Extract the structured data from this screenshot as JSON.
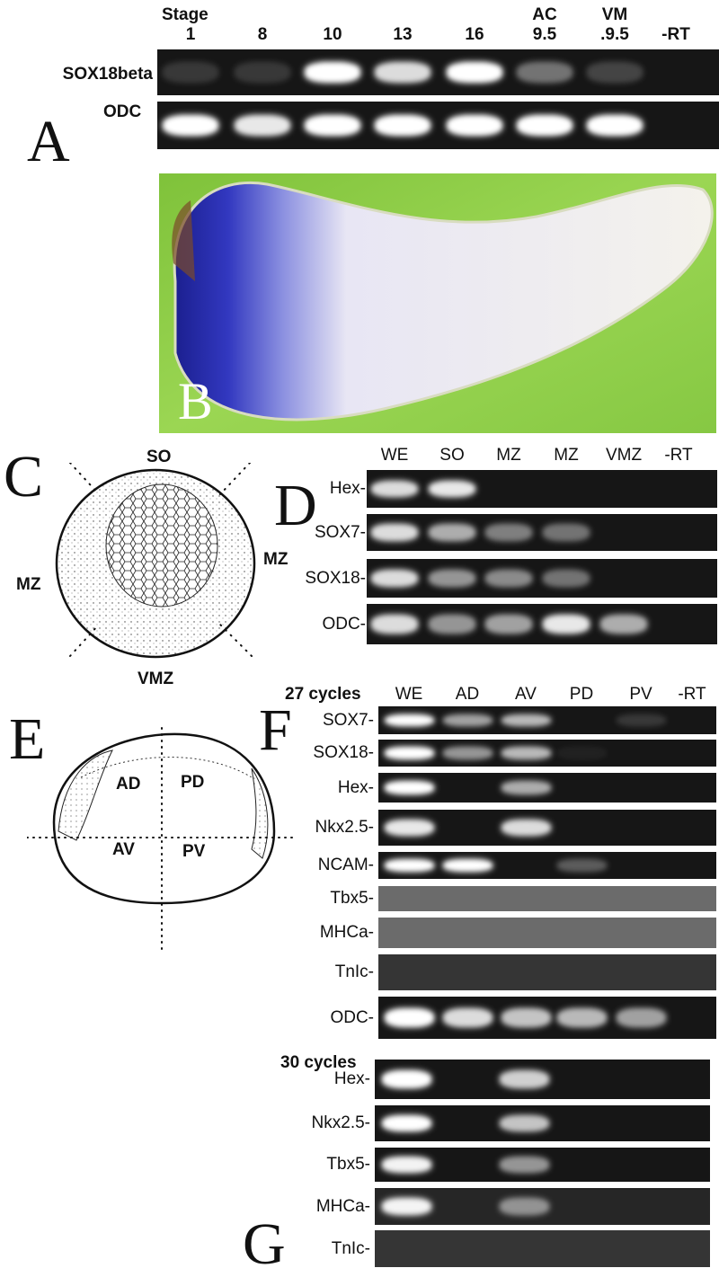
{
  "panel_a": {
    "letter": "A",
    "stage_label": "Stage",
    "lanes_top": [
      "",
      "",
      "",
      "",
      "",
      "AC",
      "VM",
      ""
    ],
    "lanes": [
      "1",
      "8",
      "10",
      "13",
      "16",
      "9.5",
      ".9.5",
      "-RT"
    ],
    "rows": [
      {
        "label": "SOX18beta",
        "bands": [
          0.15,
          0.15,
          1.0,
          0.85,
          1.0,
          0.4,
          0.2,
          0
        ]
      },
      {
        "label": "ODC",
        "bands": [
          1.0,
          0.9,
          1.0,
          1.0,
          1.0,
          1.0,
          1.0,
          0
        ]
      }
    ]
  },
  "panel_b": {
    "letter": "B"
  },
  "panel_c": {
    "letter": "C",
    "labels": {
      "top": "SO",
      "left": "MZ",
      "right": "MZ",
      "bottom": "VMZ"
    }
  },
  "panel_d": {
    "letter": "D",
    "lanes": [
      "WE",
      "SO",
      "MZ",
      "MZ",
      "VMZ",
      "-RT"
    ],
    "rows": [
      {
        "label": "Hex-",
        "bands": [
          0.85,
          0.9,
          0,
          0,
          0,
          0
        ]
      },
      {
        "label": "SOX7-",
        "bands": [
          0.85,
          0.65,
          0.45,
          0.4,
          0,
          0
        ]
      },
      {
        "label": "SOX18-",
        "bands": [
          0.85,
          0.55,
          0.5,
          0.4,
          0,
          0
        ]
      },
      {
        "label": "ODC-",
        "bands": [
          0.85,
          0.55,
          0.6,
          0.9,
          0.65,
          0
        ]
      }
    ]
  },
  "panel_e": {
    "letter": "E",
    "labels": {
      "ad": "AD",
      "pd": "PD",
      "av": "AV",
      "pv": "PV"
    }
  },
  "panel_f": {
    "letter": "F",
    "cycles": "27 cycles",
    "lanes": [
      "WE",
      "AD",
      "AV",
      "PD",
      "PV",
      "-RT"
    ],
    "rows": [
      {
        "label": "SOX7-",
        "bands": [
          1.0,
          0.6,
          0.7,
          0,
          0.15,
          0
        ],
        "background": "dark"
      },
      {
        "label": "SOX18-",
        "bands": [
          1.0,
          0.55,
          0.7,
          0.05,
          0,
          0
        ],
        "background": "dark"
      },
      {
        "label": "Hex-",
        "bands": [
          1.0,
          0,
          0.65,
          0,
          0,
          0
        ],
        "background": "dark"
      },
      {
        "label": "Nkx2.5-",
        "bands": [
          0.9,
          0,
          0.85,
          0,
          0,
          0
        ],
        "background": "dark"
      },
      {
        "label": "NCAM-",
        "bands": [
          1.0,
          1.0,
          0,
          0.3,
          0,
          0
        ],
        "background": "dark"
      },
      {
        "label": "Tbx5-",
        "bands": [
          0,
          0,
          0,
          0,
          0,
          0
        ],
        "background": "gray"
      },
      {
        "label": "MHCa-",
        "bands": [
          0,
          0,
          0,
          0,
          0,
          0
        ],
        "background": "gray"
      },
      {
        "label": "TnIc-",
        "bands": [
          0,
          0,
          0,
          0,
          0,
          0
        ],
        "background": "mid"
      },
      {
        "label": "ODC-",
        "bands": [
          1.0,
          0.85,
          0.75,
          0.7,
          0.6,
          0
        ],
        "background": "dark"
      }
    ]
  },
  "panel_g": {
    "letter": "G",
    "cycles": "30 cycles",
    "rows": [
      {
        "label": "Hex-",
        "bands": [
          1.0,
          0,
          0.8,
          0,
          0,
          0
        ],
        "background": "dark"
      },
      {
        "label": "Nkx2.5-",
        "bands": [
          1.0,
          0,
          0.75,
          0,
          0,
          0
        ],
        "background": "dark"
      },
      {
        "label": "Tbx5-",
        "bands": [
          0.95,
          0,
          0.55,
          0,
          0,
          0
        ],
        "background": "dark"
      },
      {
        "label": "MHCa-",
        "bands": [
          0.95,
          0,
          0.5,
          0,
          0,
          0
        ],
        "background": "noisy"
      },
      {
        "label": "TnIc-",
        "bands": [
          0,
          0,
          0,
          0,
          0,
          0
        ],
        "background": "mid"
      }
    ]
  },
  "colors": {
    "gel_dark": "#161616",
    "gel_gray": "#6b6b6b",
    "gel_mid": "#353535",
    "embryo_background": "#8fcf4a",
    "stain_blue": "#2a2fb8"
  }
}
